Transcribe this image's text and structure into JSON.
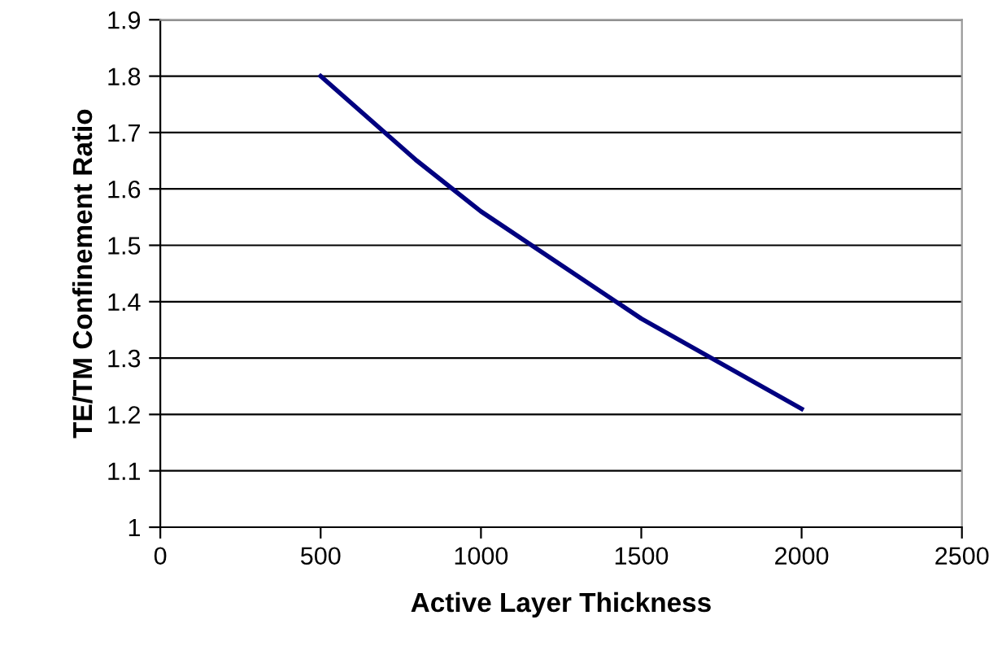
{
  "chart_data": {
    "type": "line",
    "xlabel": "Active Layer Thickness",
    "ylabel": "TE/TM Confinement Ratio",
    "x": [
      500,
      800,
      1000,
      1500,
      2000
    ],
    "series": [
      {
        "color": "#000080",
        "values": [
          1.8,
          1.65,
          1.56,
          1.37,
          1.21
        ]
      }
    ],
    "xlim": [
      0,
      2500
    ],
    "xticks": [
      0,
      500,
      1000,
      1500,
      2000,
      2500
    ],
    "ylim": [
      1,
      1.9
    ],
    "yticks": [
      1,
      1.1,
      1.2,
      1.3,
      1.4,
      1.5,
      1.6,
      1.7,
      1.8,
      1.9
    ],
    "grid": "y",
    "legend": false,
    "marker": "none",
    "line_style": "solid"
  }
}
